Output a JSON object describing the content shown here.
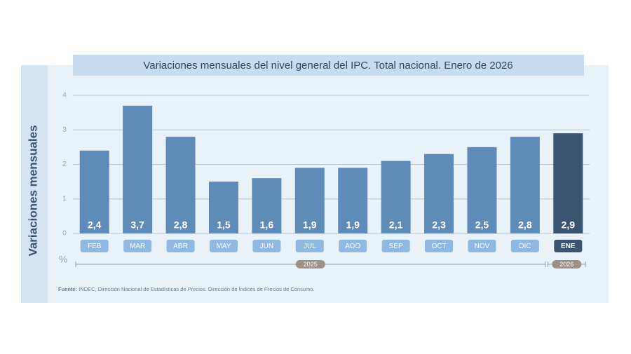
{
  "chart_data": {
    "type": "bar",
    "title": "Variaciones mensuales del nivel general del IPC. Total nacional. Enero de 2026",
    "y_label": "Variaciones mensuales",
    "y_unit": "%",
    "categories": [
      "FEB",
      "MAR",
      "ABR",
      "MAY",
      "JUN",
      "JUL",
      "AGO",
      "SEP",
      "OCT",
      "NOV",
      "DIC",
      "ENE"
    ],
    "values": [
      2.4,
      3.7,
      2.8,
      1.5,
      1.6,
      1.9,
      1.9,
      2.1,
      2.3,
      2.5,
      2.8,
      2.9
    ],
    "value_labels": [
      "2,4",
      "3,7",
      "2,8",
      "1,5",
      "1,6",
      "1,9",
      "1,9",
      "2,1",
      "2,3",
      "2,5",
      "2,8",
      "2,9"
    ],
    "colors": [
      "#5f8bb8",
      "#5f8bb8",
      "#5f8bb8",
      "#5f8bb8",
      "#5f8bb8",
      "#5f8bb8",
      "#5f8bb8",
      "#5f8bb8",
      "#5f8bb8",
      "#5f8bb8",
      "#5f8bb8",
      "#3b5571"
    ],
    "years": [
      "2025",
      "2026"
    ],
    "ylim": [
      0,
      4
    ],
    "yticks": [
      0,
      1,
      2,
      3,
      4
    ],
    "grid": true,
    "source_label": "Fuente:",
    "source": "INDEC, Dirección Nacional de Estadísticas de Precios. Dirección de Índices de Precios de Consumo."
  }
}
